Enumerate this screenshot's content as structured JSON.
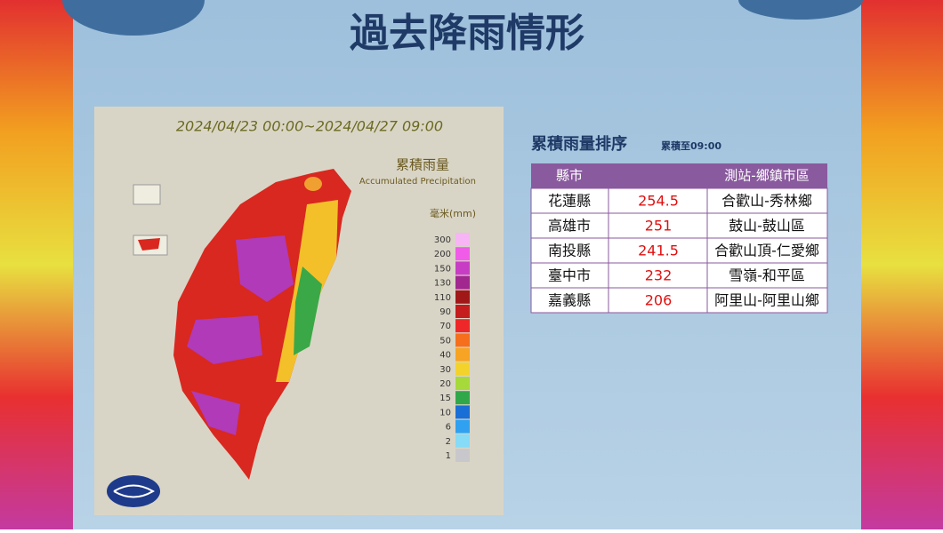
{
  "header": {
    "title": "過去降雨情形"
  },
  "map": {
    "period": "2024/04/23 00:00~2024/04/27 09:00",
    "legend_title": "累積雨量",
    "legend_subtitle": "Accumulated Precipitation",
    "unit": "毫米(mm)",
    "levels": [
      {
        "value": 300,
        "color": "#f7b5f5"
      },
      {
        "value": 200,
        "color": "#f05ce8"
      },
      {
        "value": 150,
        "color": "#c73ec4"
      },
      {
        "value": 130,
        "color": "#a0288f"
      },
      {
        "value": 110,
        "color": "#a01818"
      },
      {
        "value": 90,
        "color": "#c51d1d"
      },
      {
        "value": 70,
        "color": "#ee2828"
      },
      {
        "value": 50,
        "color": "#f56f1c"
      },
      {
        "value": 40,
        "color": "#f7a323"
      },
      {
        "value": 30,
        "color": "#f3d22c"
      },
      {
        "value": 20,
        "color": "#a6d93a"
      },
      {
        "value": 15,
        "color": "#30a84a"
      },
      {
        "value": 10,
        "color": "#1a6fd6"
      },
      {
        "value": 6,
        "color": "#2fa1f0"
      },
      {
        "value": 2,
        "color": "#86dbf7"
      },
      {
        "value": 1,
        "color": "#c8c8cc"
      }
    ]
  },
  "table": {
    "title": "累積雨量排序",
    "note": "累積至09:00",
    "headers": [
      "縣市",
      "測站-鄉鎮市區"
    ],
    "rows": [
      [
        "花蓮縣",
        254.5,
        "合歡山-秀林鄉"
      ],
      [
        "高雄市",
        251,
        "鼓山-鼓山區"
      ],
      [
        "南投縣",
        241.5,
        "合歡山頂-仁愛鄉"
      ],
      [
        "臺中市",
        232,
        "雪嶺-和平區"
      ],
      [
        "嘉義縣",
        206,
        "阿里山-阿里山鄉"
      ]
    ]
  }
}
